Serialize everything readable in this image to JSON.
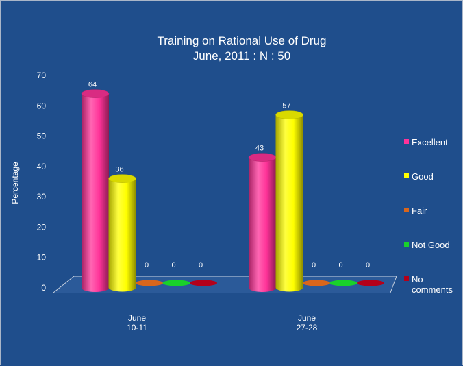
{
  "chart_data": {
    "type": "bar",
    "title": "Training on Rational Use of Drug",
    "subtitle": "June, 2011 : N : 50",
    "ylabel": "Percentage",
    "xlabel": "",
    "ylim": [
      0,
      70
    ],
    "yticks": [
      0,
      10,
      20,
      30,
      40,
      50,
      60,
      70
    ],
    "categories": [
      [
        "June",
        "10-11"
      ],
      [
        "June",
        "27-28"
      ]
    ],
    "series": [
      {
        "name": "Excellent",
        "values": [
          64,
          43
        ],
        "color": "#ff3399",
        "legend": [
          "Excellent"
        ]
      },
      {
        "name": "Good",
        "values": [
          36,
          57
        ],
        "color": "#ffff00",
        "legend": [
          "Good"
        ]
      },
      {
        "name": "Fair",
        "values": [
          0,
          0
        ],
        "color": "#d9661c",
        "legend": [
          "Fair"
        ]
      },
      {
        "name": "Not Good",
        "values": [
          0,
          0
        ],
        "color": "#19d12a",
        "legend": [
          "Not Good"
        ]
      },
      {
        "name": "No comments",
        "values": [
          0,
          0
        ],
        "color": "#b3001a",
        "legend": [
          "No",
          "comments"
        ]
      }
    ],
    "legend_position": "right",
    "grid": false,
    "cylinders": true,
    "background": "#1f4e8c"
  }
}
